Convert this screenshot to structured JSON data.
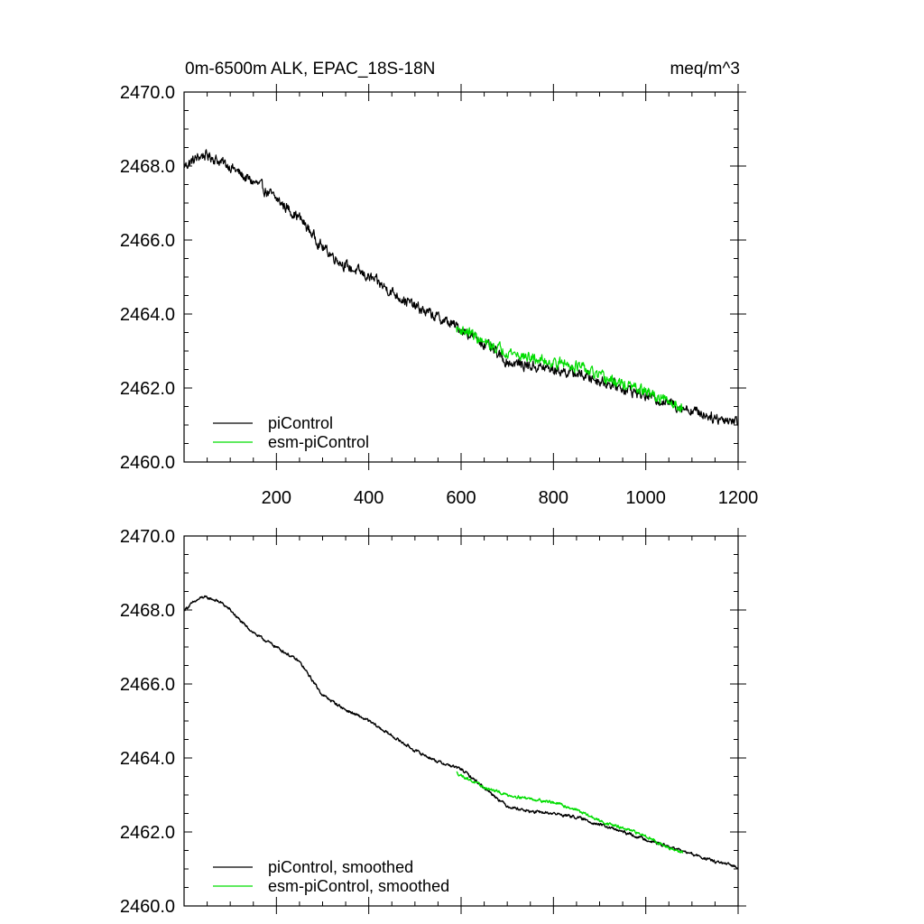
{
  "chart_data": [
    {
      "type": "line",
      "title_left": "0m-6500m ALK, EPAC_18S-18N",
      "title_right": "meq/m^3",
      "xlim": [
        0,
        1200
      ],
      "ylim": [
        2460,
        2470
      ],
      "xticks": [
        200,
        400,
        600,
        800,
        1000,
        1200
      ],
      "xtick_labels": [
        "200",
        "400",
        "600",
        "800",
        "1000",
        "1200"
      ],
      "yticks": [
        2460,
        2462,
        2464,
        2466,
        2468,
        2470
      ],
      "ytick_labels": [
        "2460.0",
        "2462.0",
        "2464.0",
        "2466.0",
        "2468.0",
        "2470.0"
      ],
      "series": [
        {
          "name": "piControl",
          "color": "#000000",
          "noise": 0.26,
          "x": [
            0,
            20,
            40,
            60,
            80,
            100,
            130,
            160,
            200,
            250,
            300,
            350,
            400,
            450,
            500,
            550,
            600,
            650,
            700,
            750,
            800,
            850,
            900,
            950,
            1000,
            1050,
            1100,
            1150,
            1200
          ],
          "y": [
            2468.0,
            2468.15,
            2468.3,
            2468.25,
            2468.1,
            2468.0,
            2467.7,
            2467.5,
            2467.1,
            2466.6,
            2465.8,
            2465.3,
            2465.0,
            2464.6,
            2464.2,
            2463.9,
            2463.6,
            2463.2,
            2462.7,
            2462.6,
            2462.5,
            2462.4,
            2462.2,
            2462.0,
            2461.8,
            2461.6,
            2461.4,
            2461.2,
            2461.1
          ]
        },
        {
          "name": "esm-piControl",
          "color": "#00dd00",
          "noise": 0.26,
          "x": [
            590,
            620,
            650,
            700,
            750,
            800,
            850,
            900,
            950,
            1000,
            1050,
            1080
          ],
          "y": [
            2463.6,
            2463.5,
            2463.2,
            2463.0,
            2462.8,
            2462.7,
            2462.6,
            2462.3,
            2462.1,
            2461.9,
            2461.6,
            2461.5
          ]
        }
      ],
      "legend": [
        "piControl",
        "esm-piControl"
      ]
    },
    {
      "type": "line",
      "xlim": [
        0,
        1200
      ],
      "ylim": [
        2460,
        2470
      ],
      "yticks": [
        2460,
        2462,
        2464,
        2466,
        2468,
        2470
      ],
      "ytick_labels": [
        "2460.0",
        "2462.0",
        "2464.0",
        "2466.0",
        "2468.0",
        "2470.0"
      ],
      "series": [
        {
          "name": "piControl, smoothed",
          "color": "#000000",
          "noise": 0.07,
          "x": [
            0,
            20,
            40,
            60,
            80,
            100,
            130,
            160,
            200,
            250,
            300,
            350,
            400,
            450,
            500,
            550,
            600,
            650,
            700,
            750,
            800,
            850,
            900,
            950,
            1000,
            1050,
            1100,
            1150,
            1200
          ],
          "y": [
            2468.0,
            2468.2,
            2468.35,
            2468.3,
            2468.2,
            2468.0,
            2467.6,
            2467.3,
            2467.0,
            2466.6,
            2465.7,
            2465.3,
            2465.0,
            2464.6,
            2464.2,
            2463.9,
            2463.7,
            2463.2,
            2462.7,
            2462.55,
            2462.5,
            2462.4,
            2462.2,
            2462.0,
            2461.8,
            2461.6,
            2461.4,
            2461.2,
            2461.05
          ]
        },
        {
          "name": "esm-piControl, smoothed",
          "color": "#00dd00",
          "noise": 0.07,
          "x": [
            590,
            620,
            650,
            700,
            750,
            800,
            850,
            900,
            950,
            1000,
            1050,
            1080
          ],
          "y": [
            2463.6,
            2463.4,
            2463.2,
            2463.0,
            2462.9,
            2462.8,
            2462.6,
            2462.3,
            2462.1,
            2461.9,
            2461.55,
            2461.45
          ]
        }
      ],
      "legend": [
        "piControl, smoothed",
        "esm-piControl, smoothed"
      ]
    }
  ]
}
